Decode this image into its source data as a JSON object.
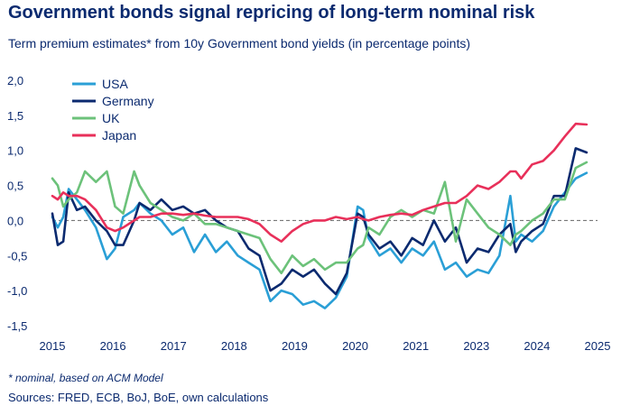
{
  "title": "Government bonds signal repricing of long-term nominal risk",
  "subtitle": "Term premium estimates* from 10y Government bond yields (in percentage points)",
  "footnote": "* nominal, based on ACM Model",
  "sources": "Sources: FRED, ECB, BoJ, BoE, own calculations",
  "chart_data": {
    "type": "line",
    "xlim": [
      2015.0,
      2025.0
    ],
    "ylim": [
      -1.5,
      2.0
    ],
    "x_tick_labels": [
      "2015",
      "2016",
      "2017",
      "2018",
      "2019",
      "2020",
      "2021",
      "2023",
      "2024",
      "2025"
    ],
    "y_tick_values": [
      2.0,
      1.5,
      1.0,
      0.5,
      0.0,
      -0.5,
      -1.0,
      -1.5
    ],
    "y_tick_labels": [
      "2,0",
      "1,5",
      "1,0",
      "0,5",
      "0,0",
      "-0,5",
      "-1,0",
      "-1,5"
    ],
    "zero_line": "dashed",
    "legend_position": "top-left",
    "series": [
      {
        "name": "USA",
        "color": "#2a9fd6",
        "x": [
          2015.0,
          2015.1,
          2015.2,
          2015.3,
          2015.45,
          2015.6,
          2015.8,
          2016.0,
          2016.15,
          2016.3,
          2016.5,
          2016.6,
          2016.8,
          2017.0,
          2017.2,
          2017.4,
          2017.6,
          2017.8,
          2018.0,
          2018.2,
          2018.4,
          2018.6,
          2018.8,
          2019.0,
          2019.2,
          2019.4,
          2019.6,
          2019.8,
          2020.0,
          2020.2,
          2020.4,
          2020.6,
          2020.7,
          2020.8,
          2021.0,
          2021.2,
          2021.4,
          2021.6,
          2021.8,
          2022.0,
          2022.2,
          2022.4,
          2022.6,
          2022.8,
          2023.0,
          2023.2,
          2023.4,
          2023.5,
          2023.6,
          2023.8,
          2024.0,
          2024.2,
          2024.4,
          2024.6,
          2024.8
        ],
        "values": [
          0.05,
          -0.1,
          0.05,
          0.45,
          0.3,
          0.15,
          -0.1,
          -0.55,
          -0.4,
          0.05,
          0.15,
          0.25,
          0.1,
          0.0,
          -0.2,
          -0.1,
          -0.45,
          -0.2,
          -0.45,
          -0.3,
          -0.5,
          -0.6,
          -0.7,
          -1.15,
          -1.0,
          -1.05,
          -1.2,
          -1.15,
          -1.25,
          -1.1,
          -0.8,
          0.2,
          0.15,
          -0.25,
          -0.5,
          -0.4,
          -0.6,
          -0.4,
          -0.5,
          -0.3,
          -0.7,
          -0.6,
          -0.8,
          -0.7,
          -0.75,
          -0.5,
          0.35,
          -0.3,
          -0.2,
          -0.3,
          -0.15,
          0.2,
          0.4,
          0.6,
          0.68
        ]
      },
      {
        "name": "Germany",
        "color": "#0b2a6f",
        "x": [
          2015.0,
          2015.1,
          2015.2,
          2015.3,
          2015.45,
          2015.6,
          2015.8,
          2016.0,
          2016.15,
          2016.3,
          2016.5,
          2016.6,
          2016.8,
          2017.0,
          2017.2,
          2017.4,
          2017.6,
          2017.8,
          2018.0,
          2018.2,
          2018.4,
          2018.6,
          2018.8,
          2019.0,
          2019.2,
          2019.4,
          2019.6,
          2019.8,
          2020.0,
          2020.2,
          2020.4,
          2020.6,
          2020.7,
          2020.8,
          2021.0,
          2021.2,
          2021.4,
          2021.6,
          2021.8,
          2022.0,
          2022.2,
          2022.4,
          2022.6,
          2022.8,
          2023.0,
          2023.2,
          2023.4,
          2023.5,
          2023.6,
          2023.8,
          2024.0,
          2024.2,
          2024.4,
          2024.6,
          2024.8
        ],
        "values": [
          0.1,
          -0.35,
          -0.3,
          0.4,
          0.15,
          0.2,
          0.0,
          -0.15,
          -0.35,
          -0.35,
          0.0,
          0.25,
          0.15,
          0.3,
          0.15,
          0.2,
          0.1,
          0.15,
          0.0,
          -0.1,
          -0.15,
          -0.4,
          -0.5,
          -1.0,
          -0.9,
          -0.7,
          -0.8,
          -0.7,
          -0.9,
          -1.05,
          -0.75,
          0.1,
          0.05,
          -0.2,
          -0.4,
          -0.3,
          -0.5,
          -0.25,
          -0.35,
          0.0,
          -0.3,
          -0.1,
          -0.6,
          -0.4,
          -0.45,
          -0.2,
          -0.05,
          -0.45,
          -0.3,
          -0.15,
          -0.05,
          0.35,
          0.35,
          1.03,
          0.97
        ]
      },
      {
        "name": "UK",
        "color": "#6cc27a",
        "x": [
          2015.0,
          2015.1,
          2015.2,
          2015.3,
          2015.45,
          2015.6,
          2015.8,
          2016.0,
          2016.15,
          2016.3,
          2016.5,
          2016.6,
          2016.8,
          2017.0,
          2017.2,
          2017.4,
          2017.6,
          2017.8,
          2018.0,
          2018.2,
          2018.4,
          2018.6,
          2018.8,
          2019.0,
          2019.2,
          2019.4,
          2019.6,
          2019.8,
          2020.0,
          2020.2,
          2020.4,
          2020.6,
          2020.7,
          2020.8,
          2021.0,
          2021.2,
          2021.4,
          2021.6,
          2021.8,
          2022.0,
          2022.2,
          2022.4,
          2022.6,
          2022.8,
          2023.0,
          2023.2,
          2023.4,
          2023.5,
          2023.6,
          2023.8,
          2024.0,
          2024.2,
          2024.4,
          2024.6,
          2024.8
        ],
        "values": [
          0.6,
          0.5,
          0.2,
          0.3,
          0.4,
          0.7,
          0.55,
          0.7,
          0.2,
          0.1,
          0.7,
          0.5,
          0.25,
          0.15,
          0.05,
          0.0,
          0.1,
          -0.05,
          -0.05,
          -0.1,
          -0.15,
          -0.2,
          -0.25,
          -0.55,
          -0.75,
          -0.5,
          -0.65,
          -0.55,
          -0.7,
          -0.6,
          -0.6,
          -0.4,
          -0.35,
          -0.1,
          -0.2,
          0.05,
          0.15,
          0.05,
          0.15,
          0.1,
          0.55,
          -0.3,
          0.3,
          0.1,
          -0.1,
          -0.2,
          -0.35,
          -0.2,
          -0.15,
          0.0,
          0.1,
          0.3,
          0.3,
          0.75,
          0.83
        ]
      },
      {
        "name": "Japan",
        "color": "#e8305a",
        "x": [
          2015.0,
          2015.1,
          2015.2,
          2015.3,
          2015.45,
          2015.6,
          2015.8,
          2016.0,
          2016.15,
          2016.3,
          2016.5,
          2016.6,
          2016.8,
          2017.0,
          2017.2,
          2017.4,
          2017.6,
          2017.8,
          2018.0,
          2018.2,
          2018.4,
          2018.6,
          2018.8,
          2019.0,
          2019.2,
          2019.4,
          2019.6,
          2019.8,
          2020.0,
          2020.2,
          2020.4,
          2020.6,
          2020.7,
          2020.8,
          2021.0,
          2021.2,
          2021.4,
          2021.6,
          2021.8,
          2022.0,
          2022.2,
          2022.4,
          2022.6,
          2022.8,
          2023.0,
          2023.2,
          2023.4,
          2023.5,
          2023.6,
          2023.8,
          2024.0,
          2024.2,
          2024.4,
          2024.6,
          2024.8
        ],
        "values": [
          0.35,
          0.3,
          0.4,
          0.35,
          0.35,
          0.3,
          0.15,
          -0.1,
          -0.15,
          -0.1,
          0.0,
          0.05,
          0.05,
          0.1,
          0.1,
          0.08,
          0.1,
          0.07,
          0.05,
          0.05,
          0.05,
          0.02,
          -0.05,
          -0.2,
          -0.3,
          -0.15,
          -0.05,
          0.0,
          0.0,
          0.05,
          0.02,
          0.05,
          0.02,
          0.0,
          0.05,
          0.08,
          0.1,
          0.08,
          0.15,
          0.2,
          0.25,
          0.25,
          0.35,
          0.5,
          0.45,
          0.55,
          0.7,
          0.7,
          0.6,
          0.8,
          0.85,
          1.0,
          1.2,
          1.38,
          1.37
        ]
      }
    ]
  }
}
